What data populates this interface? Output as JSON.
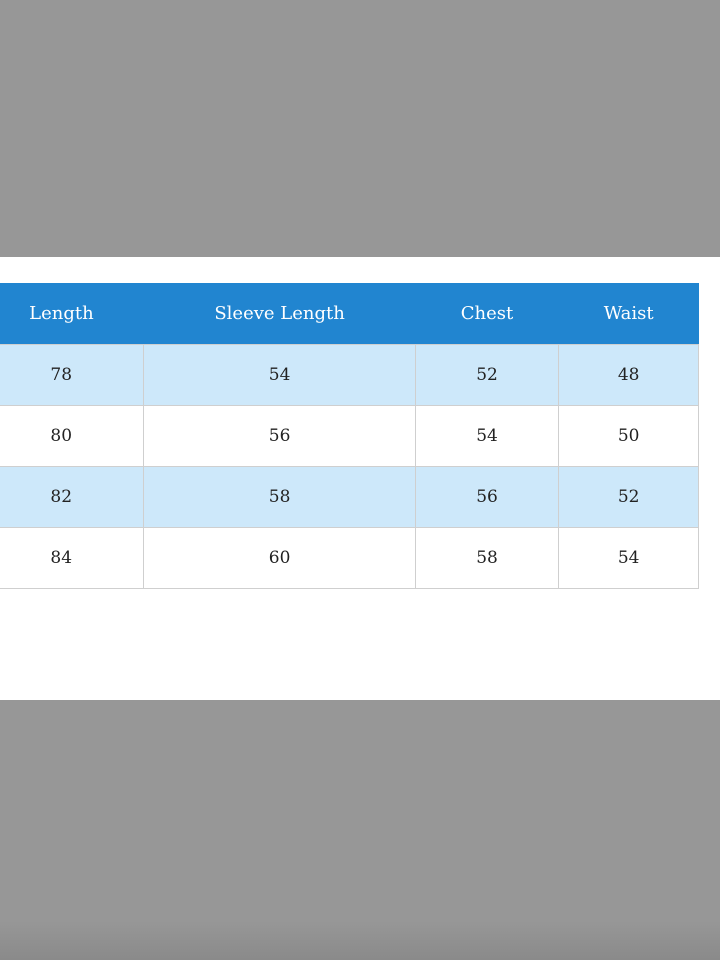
{
  "size_table": {
    "headers": [
      "Length",
      "Sleeve Length",
      "Chest",
      "Waist"
    ],
    "rows": [
      [
        "78",
        "54",
        "52",
        "48"
      ],
      [
        "80",
        "56",
        "54",
        "50"
      ],
      [
        "82",
        "58",
        "56",
        "52"
      ],
      [
        "84",
        "60",
        "58",
        "54"
      ]
    ],
    "colors": {
      "header_bg": "#2185d0",
      "stripe_bg": "#cde8fa",
      "backdrop": "#979797"
    }
  }
}
